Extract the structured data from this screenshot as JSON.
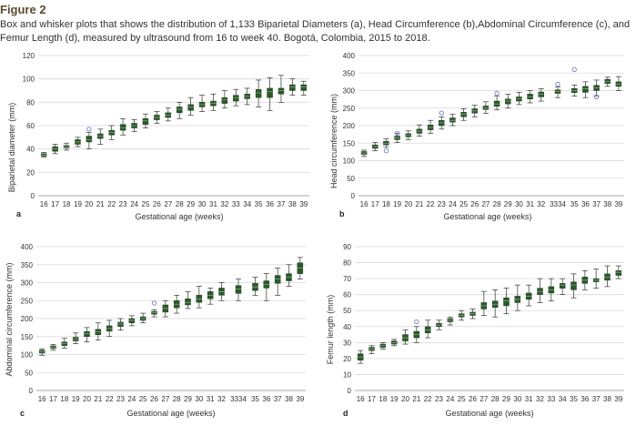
{
  "figure": {
    "label": "Figure 2",
    "caption": "Box and whisker plots that shows the distribution of 1,133 Biparietal Diameters (a), Head Circumference (b),Abdominal Circumference (c), and Femur Length (d), measured by ultrasound from 16 to week 40. Bogotá, Colombia, 2015 to 2018."
  },
  "chart_data": [
    {
      "type": "box",
      "panel": "a",
      "xlabel": "Gestational age (weeks)",
      "ylabel": "Biparietal diameter (mm)",
      "ylim": [
        0,
        120
      ],
      "yticks": [
        0,
        20,
        40,
        60,
        80,
        100,
        120
      ],
      "categories": [
        "16",
        "17",
        "18",
        "19",
        "20",
        "21",
        "22",
        "23",
        "24",
        "25",
        "26",
        "27",
        "28",
        "29",
        "30",
        "31",
        "32",
        "33",
        "34",
        "35",
        "36",
        "37",
        "38",
        "39"
      ],
      "category_positions": [
        16,
        17,
        18,
        19,
        20,
        21,
        22,
        23,
        24,
        25,
        26,
        27,
        28,
        29,
        30,
        31,
        32,
        33,
        34,
        35,
        36,
        37,
        38,
        39
      ],
      "boxes": [
        [
          33,
          34,
          35,
          36,
          37
        ],
        [
          36,
          38,
          40,
          42,
          44
        ],
        [
          39,
          41,
          42,
          43,
          45
        ],
        [
          42,
          44,
          46,
          48,
          50
        ],
        [
          40,
          46,
          48,
          51,
          54
        ],
        [
          44,
          49,
          51,
          53,
          57
        ],
        [
          48,
          52,
          54,
          56,
          60
        ],
        [
          52,
          56,
          58,
          61,
          66
        ],
        [
          55,
          58,
          60,
          62,
          65
        ],
        [
          58,
          61,
          64,
          66,
          70
        ],
        [
          62,
          65,
          67,
          69,
          72
        ],
        [
          64,
          67,
          69,
          71,
          75
        ],
        [
          66,
          71,
          74,
          76,
          80
        ],
        [
          69,
          73,
          76,
          78,
          84
        ],
        [
          72,
          76,
          78,
          80,
          86
        ],
        [
          73,
          77,
          79,
          81,
          87
        ],
        [
          75,
          79,
          82,
          84,
          90
        ],
        [
          77,
          81,
          84,
          86,
          91
        ],
        [
          78,
          83,
          85,
          87,
          92
        ],
        [
          76,
          84,
          88,
          91,
          99
        ],
        [
          73,
          84,
          89,
          92,
          101
        ],
        [
          80,
          87,
          90,
          92,
          103
        ],
        [
          86,
          90,
          93,
          95,
          100
        ],
        [
          86,
          90,
          93,
          95,
          98
        ]
      ],
      "outliers": [
        [
          20,
          57
        ]
      ]
    },
    {
      "type": "box",
      "panel": "b",
      "xlabel": "Gestational age (weeks)",
      "ylabel": "Head circumference (mm)",
      "ylim": [
        0,
        400
      ],
      "yticks": [
        0,
        50,
        100,
        150,
        200,
        250,
        300,
        350,
        400
      ],
      "categories": [
        "16",
        "17",
        "18",
        "19",
        "20",
        "21",
        "22",
        "23",
        "24",
        "25",
        "26",
        "27",
        "28",
        "29",
        "30",
        "31",
        "32",
        "3334",
        "35",
        "36",
        "37",
        "38",
        "39"
      ],
      "category_positions": [
        16,
        17,
        18,
        19,
        20,
        21,
        22,
        23,
        24,
        25,
        26,
        27,
        28,
        29,
        30,
        31,
        32,
        33.5,
        35,
        36,
        37,
        38,
        39
      ],
      "boxes": [
        [
          112,
          118,
          122,
          126,
          130
        ],
        [
          128,
          135,
          140,
          145,
          152
        ],
        [
          138,
          145,
          150,
          155,
          162
        ],
        [
          152,
          160,
          165,
          170,
          178
        ],
        [
          160,
          168,
          172,
          177,
          185
        ],
        [
          170,
          178,
          184,
          190,
          202
        ],
        [
          178,
          188,
          195,
          202,
          215
        ],
        [
          190,
          200,
          208,
          215,
          225
        ],
        [
          200,
          210,
          215,
          222,
          232
        ],
        [
          215,
          225,
          232,
          238,
          248
        ],
        [
          225,
          236,
          242,
          248,
          258
        ],
        [
          235,
          246,
          250,
          256,
          268
        ],
        [
          245,
          255,
          262,
          270,
          285
        ],
        [
          250,
          262,
          270,
          276,
          290
        ],
        [
          260,
          270,
          276,
          282,
          295
        ],
        [
          265,
          276,
          282,
          290,
          300
        ],
        [
          270,
          282,
          290,
          296,
          305
        ],
        [
          280,
          292,
          297,
          302,
          310
        ],
        [
          284,
          294,
          300,
          306,
          316
        ],
        [
          280,
          295,
          305,
          312,
          325
        ],
        [
          285,
          300,
          308,
          315,
          330
        ],
        [
          312,
          320,
          326,
          332,
          338
        ],
        [
          300,
          312,
          318,
          325,
          340
        ]
      ],
      "outliers": [
        [
          18,
          128
        ],
        [
          19,
          178
        ],
        [
          23,
          236
        ],
        [
          28,
          292
        ],
        [
          33.5,
          318
        ],
        [
          35,
          360
        ],
        [
          37,
          282
        ]
      ]
    },
    {
      "type": "box",
      "panel": "c",
      "xlabel": "Gestational age (weeks)",
      "ylabel": "Abdominal circumference (mm)",
      "ylim": [
        0,
        400
      ],
      "yticks": [
        0,
        50,
        100,
        150,
        200,
        250,
        300,
        350,
        400
      ],
      "categories": [
        "16",
        "17",
        "18",
        "19",
        "20",
        "21",
        "22",
        "23",
        "24",
        "25",
        "26",
        "27",
        "28",
        "29",
        "30",
        "31",
        "32",
        "3334",
        "35",
        "36",
        "37",
        "38",
        "39"
      ],
      "category_positions": [
        16,
        17,
        18,
        19,
        20,
        21,
        22,
        23,
        24,
        25,
        26,
        27,
        28,
        29,
        30,
        31,
        32,
        33.5,
        35,
        36,
        37,
        38,
        39
      ],
      "boxes": [
        [
          98,
          104,
          108,
          112,
          116
        ],
        [
          112,
          117,
          120,
          124,
          128
        ],
        [
          118,
          125,
          130,
          135,
          145
        ],
        [
          130,
          138,
          143,
          148,
          160
        ],
        [
          135,
          150,
          158,
          164,
          175
        ],
        [
          140,
          155,
          163,
          170,
          188
        ],
        [
          150,
          165,
          172,
          180,
          195
        ],
        [
          168,
          178,
          185,
          190,
          200
        ],
        [
          180,
          188,
          195,
          200,
          208
        ],
        [
          188,
          195,
          200,
          205,
          215
        ],
        [
          205,
          212,
          216,
          220,
          225
        ],
        [
          205,
          218,
          228,
          238,
          250
        ],
        [
          215,
          230,
          240,
          250,
          265
        ],
        [
          228,
          238,
          245,
          255,
          275
        ],
        [
          230,
          245,
          255,
          265,
          290
        ],
        [
          240,
          255,
          265,
          275,
          285
        ],
        [
          250,
          265,
          275,
          285,
          300
        ],
        [
          250,
          270,
          282,
          292,
          310
        ],
        [
          265,
          278,
          288,
          298,
          315
        ],
        [
          250,
          285,
          295,
          305,
          325
        ],
        [
          265,
          298,
          310,
          320,
          340
        ],
        [
          290,
          305,
          315,
          325,
          350
        ],
        [
          310,
          325,
          340,
          355,
          370
        ]
      ],
      "outliers": [
        [
          26,
          243
        ]
      ]
    },
    {
      "type": "box",
      "panel": "d",
      "xlabel": "Gestational age (weeks)",
      "ylabel": "Femur length (mm)",
      "ylim": [
        0,
        90
      ],
      "yticks": [
        0,
        10,
        20,
        30,
        40,
        50,
        60,
        70,
        80,
        90
      ],
      "categories": [
        "16",
        "17",
        "18",
        "19",
        "20",
        "21",
        "22",
        "23",
        "24",
        "25",
        "26",
        "27",
        "28",
        "29",
        "30",
        "31",
        "32",
        "33",
        "34",
        "35",
        "36",
        "37",
        "38",
        "39"
      ],
      "category_positions": [
        16,
        17,
        18,
        19,
        20,
        21,
        22,
        23,
        24,
        25,
        26,
        27,
        28,
        29,
        30,
        31,
        32,
        33,
        34,
        35,
        36,
        37,
        38,
        39
      ],
      "boxes": [
        [
          17,
          19,
          21,
          23,
          25
        ],
        [
          23,
          25,
          26,
          27,
          28
        ],
        [
          26,
          27,
          28,
          29,
          30
        ],
        [
          28,
          29,
          30,
          31,
          32
        ],
        [
          29,
          31,
          33,
          35,
          38
        ],
        [
          30,
          33,
          35,
          37,
          40
        ],
        [
          33,
          36,
          38,
          40,
          44
        ],
        [
          38,
          40,
          41,
          42,
          44
        ],
        [
          41,
          43,
          44,
          45,
          46
        ],
        [
          44,
          46,
          47,
          48,
          50
        ],
        [
          45,
          47,
          48,
          49,
          51
        ],
        [
          47,
          51,
          53,
          55,
          62
        ],
        [
          46,
          52,
          54,
          56,
          63
        ],
        [
          48,
          53,
          56,
          58,
          64
        ],
        [
          50,
          55,
          57,
          59,
          66
        ],
        [
          53,
          57,
          59,
          61,
          66
        ],
        [
          55,
          60,
          62,
          64,
          70
        ],
        [
          56,
          61,
          63,
          65,
          70
        ],
        [
          60,
          64,
          66,
          67,
          70
        ],
        [
          58,
          63,
          66,
          68,
          73
        ],
        [
          63,
          67,
          69,
          71,
          75
        ],
        [
          64,
          68,
          69,
          70,
          76
        ],
        [
          65,
          69,
          71,
          73,
          78
        ],
        [
          70,
          72,
          74,
          75,
          78
        ]
      ],
      "outliers": [
        [
          21,
          43
        ]
      ]
    }
  ]
}
